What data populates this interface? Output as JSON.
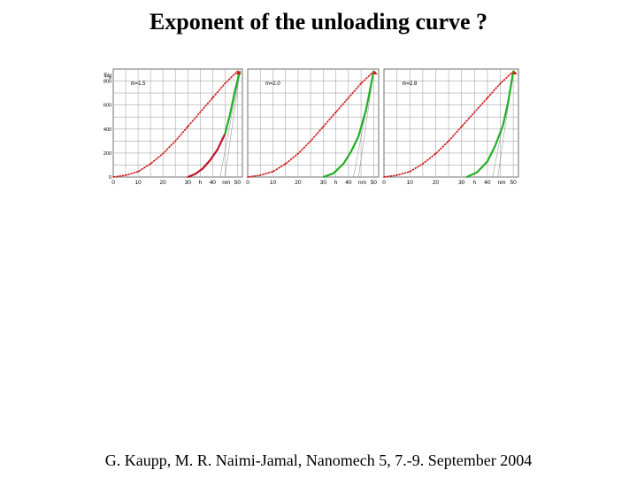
{
  "page": {
    "title": "Exponent of the unloading curve ?",
    "citation": "G. Kaupp, M. R. Naimi-Jamal, Nanomech 5, 7.-9. September 2004"
  },
  "axis_text": {
    "y_unit": "μN",
    "y_symbol": "F",
    "y_symbol_sub": "N",
    "x_h": "h",
    "x_unit": "nm"
  },
  "colors": {
    "loading": "#d01818",
    "unloading_panel1": "#c0102a",
    "unloading_fit": "#22b022",
    "grid": "#a8a8a8",
    "tangent": "#8a8a8a"
  },
  "chart_data": [
    {
      "type": "line",
      "annotation": "m=1.5",
      "xlim": [
        0,
        52
      ],
      "ylim": [
        0,
        900
      ],
      "xticks": [
        0,
        10,
        20,
        30,
        40,
        50
      ],
      "yticks": [
        0,
        200,
        400,
        600,
        800
      ],
      "grid": true,
      "series": [
        {
          "role": "loading",
          "color": "#d01818",
          "x": [
            0,
            5,
            10,
            15,
            20,
            25,
            30,
            35,
            40,
            45,
            50
          ],
          "y": [
            0,
            15,
            45,
            110,
            195,
            300,
            420,
            540,
            660,
            780,
            880
          ]
        },
        {
          "role": "unloading",
          "color": "#c0102a",
          "x": [
            30,
            33,
            36,
            39,
            42,
            45
          ],
          "y": [
            0,
            25,
            70,
            140,
            230,
            360
          ]
        },
        {
          "role": "unloading-fit",
          "color": "#22b022",
          "x": [
            45,
            47,
            49,
            51
          ],
          "y": [
            360,
            520,
            720,
            880
          ]
        }
      ]
    },
    {
      "type": "line",
      "annotation": "m=2.0",
      "xlim": [
        0,
        52
      ],
      "ylim": [
        0,
        900
      ],
      "xticks": [
        0,
        10,
        20,
        30,
        40,
        50
      ],
      "yticks": [
        0,
        200,
        400,
        600,
        800
      ],
      "grid": true,
      "series": [
        {
          "role": "loading",
          "color": "#d01818",
          "x": [
            0,
            5,
            10,
            15,
            20,
            25,
            30,
            35,
            40,
            45,
            50
          ],
          "y": [
            0,
            15,
            45,
            110,
            195,
            300,
            420,
            540,
            660,
            780,
            880
          ]
        },
        {
          "role": "unloading-fit",
          "color": "#22b022",
          "x": [
            30,
            34,
            38,
            41,
            44,
            47,
            50
          ],
          "y": [
            0,
            30,
            110,
            210,
            340,
            560,
            880
          ]
        }
      ]
    },
    {
      "type": "line",
      "annotation": "m=2.8",
      "xlim": [
        0,
        52
      ],
      "ylim": [
        0,
        900
      ],
      "xticks": [
        0,
        10,
        20,
        30,
        40,
        50
      ],
      "yticks": [
        0,
        200,
        400,
        600,
        800
      ],
      "grid": true,
      "series": [
        {
          "role": "loading",
          "color": "#d01818",
          "x": [
            0,
            5,
            10,
            15,
            20,
            25,
            30,
            35,
            40,
            45,
            50
          ],
          "y": [
            0,
            15,
            45,
            110,
            195,
            300,
            420,
            540,
            660,
            780,
            880
          ]
        },
        {
          "role": "unloading-fit",
          "color": "#22b022",
          "x": [
            32,
            36,
            40,
            43,
            46,
            48,
            50
          ],
          "y": [
            0,
            40,
            130,
            260,
            430,
            620,
            880
          ]
        }
      ]
    }
  ]
}
